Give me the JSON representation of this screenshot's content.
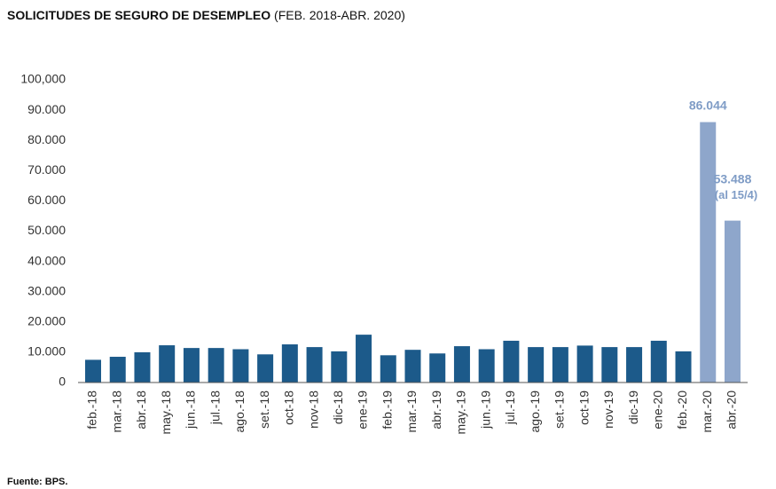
{
  "chart_data": {
    "type": "bar",
    "title": "SOLICITUDES DE SEGURO DE DESEMPLEO",
    "subtitle": "(FEB. 2018-ABR. 2020)",
    "source": "Fuente: BPS.",
    "categories": [
      "feb.-18",
      "mar.-18",
      "abr.-18",
      "may.-18",
      "jun.-18",
      "jul.-18",
      "ago.-18",
      "set.-18",
      "oct-18",
      "nov-18",
      "dic-18",
      "ene-19",
      "feb.-19",
      "mar.-19",
      "abr.-19",
      "may.-19",
      "jun.-19",
      "jul.-19",
      "ago.-19",
      "set.-19",
      "oct-19",
      "nov-19",
      "dic-19",
      "ene-20",
      "feb.-20",
      "mar.-20",
      "abr.-20"
    ],
    "values": [
      7500,
      8500,
      10000,
      12300,
      11400,
      11400,
      11000,
      9300,
      12600,
      11700,
      10300,
      15800,
      9000,
      10800,
      9600,
      12000,
      11000,
      13800,
      11700,
      11700,
      12200,
      11700,
      11700,
      13800,
      10300,
      86044,
      53488
    ],
    "value_labels": [
      null,
      null,
      null,
      null,
      null,
      null,
      null,
      null,
      null,
      null,
      null,
      null,
      null,
      null,
      null,
      null,
      null,
      null,
      null,
      null,
      null,
      null,
      null,
      null,
      null,
      "86.044",
      "53.488"
    ],
    "colors": [
      "#1c5a8a",
      "#1c5a8a",
      "#1c5a8a",
      "#1c5a8a",
      "#1c5a8a",
      "#1c5a8a",
      "#1c5a8a",
      "#1c5a8a",
      "#1c5a8a",
      "#1c5a8a",
      "#1c5a8a",
      "#1c5a8a",
      "#1c5a8a",
      "#1c5a8a",
      "#1c5a8a",
      "#1c5a8a",
      "#1c5a8a",
      "#1c5a8a",
      "#1c5a8a",
      "#1c5a8a",
      "#1c5a8a",
      "#1c5a8a",
      "#1c5a8a",
      "#1c5a8a",
      "#1c5a8a",
      "#8ea6cb",
      "#8ea6cb"
    ],
    "annotation": "(al 15/4)",
    "ylim": [
      0,
      100000
    ],
    "yticks": [
      0,
      {
        "value": 10000,
        "label": "10.000"
      },
      {
        "value": 20000,
        "label": "20.000"
      },
      {
        "value": 30000,
        "label": "30.000"
      },
      {
        "value": 40000,
        "label": "40.000"
      },
      {
        "value": 50000,
        "label": "50.000"
      },
      {
        "value": 60000,
        "label": "60.000"
      },
      {
        "value": 70000,
        "label": "70.000"
      },
      {
        "value": 80000,
        "label": "80.000"
      },
      {
        "value": 90000,
        "label": "90.000"
      },
      {
        "value": 100000,
        "label": "100,000"
      }
    ],
    "grid": false
  }
}
